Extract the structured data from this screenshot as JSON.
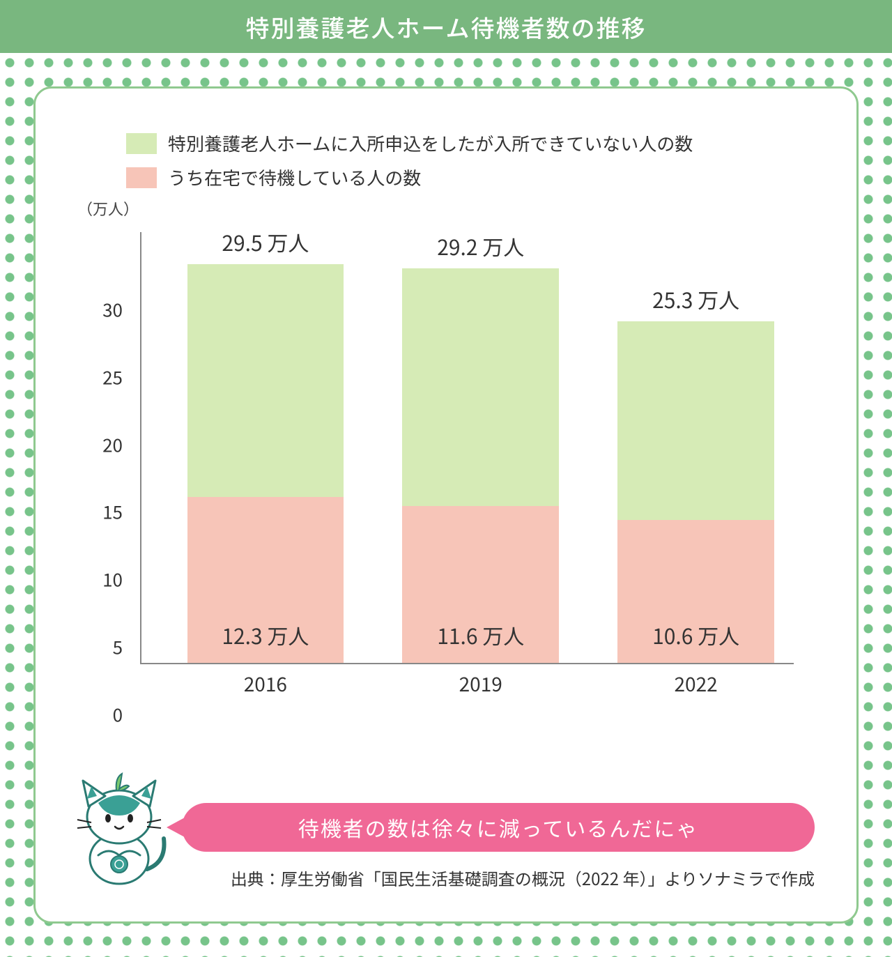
{
  "title": "特別養護老人ホーム待機者数の推移",
  "title_bg": "#79b77f",
  "dot_color": "#77c48a",
  "dot_bg": "#ffffff",
  "card_border": "#8fc98f",
  "legend": [
    {
      "color": "#d6ebb6",
      "label": "特別養護老人ホームに入所申込をしたが入所できていない人の数"
    },
    {
      "color": "#f7c5b8",
      "label": "うち在宅で待機している人の数"
    }
  ],
  "chart": {
    "type": "stacked-bar",
    "y_unit": "（万人）",
    "y_ticks": [
      0,
      5,
      10,
      15,
      20,
      25,
      30
    ],
    "y_max": 32,
    "categories": [
      "2016",
      "2019",
      "2022"
    ],
    "series_total": {
      "color": "#d6ebb6",
      "values": [
        29.5,
        29.2,
        25.3
      ],
      "labels": [
        "29.5 万人",
        "29.2 万人",
        "25.3 万人"
      ]
    },
    "series_inner": {
      "color": "#f7c5b8",
      "values": [
        12.3,
        11.6,
        10.6
      ],
      "labels": [
        "12.3 万人",
        "11.6 万人",
        "10.6 万人"
      ]
    },
    "bar_positions_pct": [
      7,
      40,
      73
    ],
    "bar_width_pct": 24,
    "axis_color": "#888888",
    "text_color": "#333333"
  },
  "speech": {
    "text": "待機者の数は徐々に減っているんだにゃ",
    "bg": "#f06896"
  },
  "source": "出典：厚生労働省「国民生活基礎調査の概況（2022 年）」よりソナミラで作成",
  "mascot_colors": {
    "body": "#ffffff",
    "accent": "#3aa095",
    "outline": "#2a7a72",
    "leaf": "#7bc96f"
  }
}
